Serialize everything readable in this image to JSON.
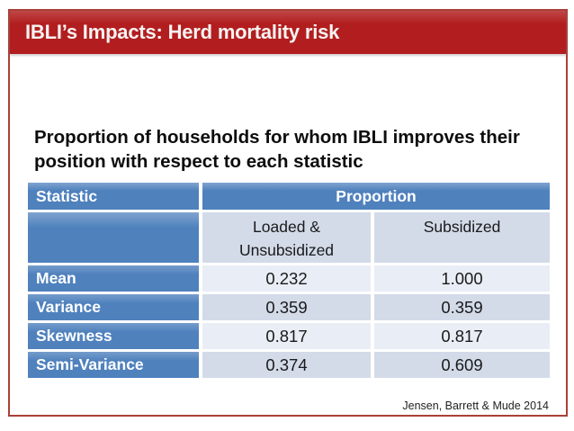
{
  "slide": {
    "title": "IBLI’s Impacts: Herd mortality risk",
    "heading": "Proportion of households for whom IBLI improves their position with respect to each statistic",
    "citation": "Jensen, Barrett & Mude 2014"
  },
  "table": {
    "col_statistic_header": "Statistic",
    "proportion_header": "Proportion",
    "subheaders": {
      "loaded": "Loaded & Unsubsidized",
      "subsidized": "Subsidized"
    },
    "rows": [
      {
        "statistic": "Mean",
        "loaded_unsubsidized": "0.232",
        "subsidized": "1.000"
      },
      {
        "statistic": "Variance",
        "loaded_unsubsidized": "0.359",
        "subsidized": "0.359"
      },
      {
        "statistic": "Skewness",
        "loaded_unsubsidized": "0.817",
        "subsidized": "0.817"
      },
      {
        "statistic": "Semi-Variance",
        "loaded_unsubsidized": "0.374",
        "subsidized": "0.609"
      }
    ]
  },
  "colors": {
    "title_bar_red": "#B21E1F",
    "frame_border_red": "#A94038",
    "header_blue": "#4F81BD",
    "band_light": "#E9EDF5",
    "band_dark": "#D3DBE9"
  }
}
